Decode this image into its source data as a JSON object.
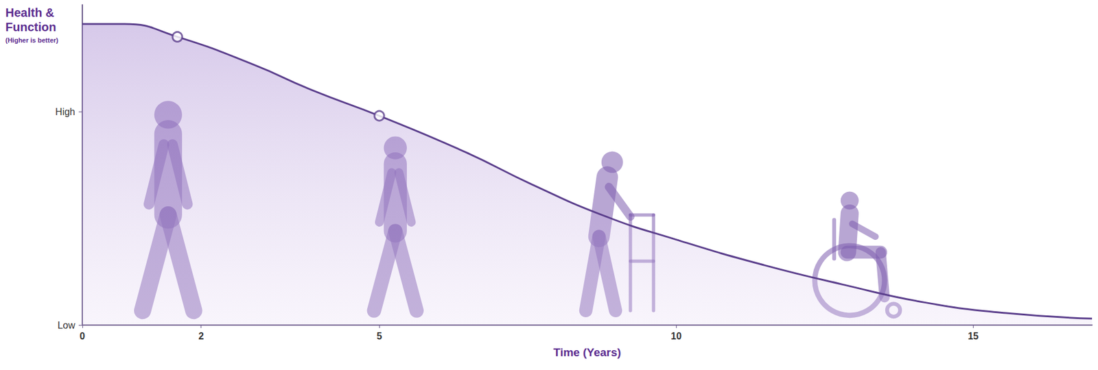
{
  "chart_data": {
    "type": "area",
    "ylabel": "Health & Function",
    "ylabel_note": "(Higher is better)",
    "xlabel": "Time (Years)",
    "x": [
      0,
      0.71,
      1.6,
      2.88,
      3.87,
      5,
      6.45,
      7.56,
      8.8,
      10,
      11.42,
      12.8,
      14.2,
      15.55,
      17
    ],
    "values": [
      1.41,
      1.41,
      1.35,
      1.22,
      1.1,
      0.98,
      0.81,
      0.66,
      0.51,
      0.4,
      0.285,
      0.19,
      0.105,
      0.056,
      0.03
    ],
    "color": "#5b3f8c",
    "xlim": [
      0,
      17
    ],
    "xticks": [
      0,
      2,
      5,
      10,
      15
    ],
    "ylim": [
      0,
      1.5
    ],
    "yticks": [
      {
        "value": 0,
        "label": "Low"
      },
      {
        "value": 1,
        "label": "High"
      }
    ],
    "grid": false,
    "highlight_points": {
      "x": [
        1.6,
        5
      ],
      "y": [
        1.35,
        0.98
      ]
    },
    "marker": "hollow circle"
  }
}
